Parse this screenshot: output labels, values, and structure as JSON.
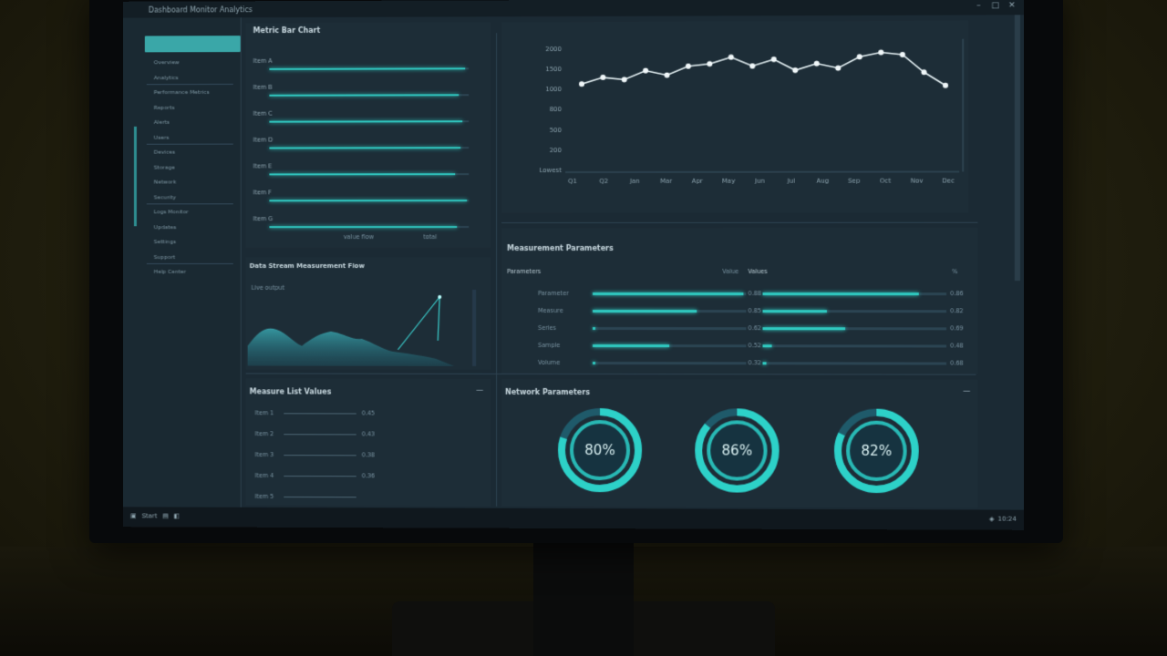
{
  "window": {
    "title": "Dashboard Monitor Analytics"
  },
  "sidebar": {
    "items": [
      {
        "label": "Overview"
      },
      {
        "label": "Analytics"
      },
      {
        "label": "Performance Metrics"
      },
      {
        "label": "Reports"
      },
      {
        "label": "Alerts"
      },
      {
        "label": "Users"
      },
      {
        "label": "Devices"
      },
      {
        "label": "Storage"
      },
      {
        "label": "Network"
      },
      {
        "label": "Security"
      },
      {
        "label": "Logs Monitor"
      },
      {
        "label": "Updates"
      },
      {
        "label": "Settings"
      },
      {
        "label": "Support"
      },
      {
        "label": "Help Center"
      }
    ]
  },
  "top_left_panel": {
    "title": "Metric Bar Chart",
    "rows": [
      {
        "label": "Item A",
        "value": 0.98
      },
      {
        "label": "Item B",
        "value": 0.95
      },
      {
        "label": "Item C",
        "value": 0.97
      },
      {
        "label": "Item D",
        "value": 0.96
      },
      {
        "label": "Item E",
        "value": 0.93
      },
      {
        "label": "Item F",
        "value": 0.99
      },
      {
        "label": "Item G",
        "value": 0.94
      }
    ],
    "footer_a": "value flow",
    "footer_b": "total"
  },
  "area_panel": {
    "title": "Data Stream Measurement Flow",
    "subtitle": "Live output"
  },
  "line_panel": {
    "y_labels": [
      "2000",
      "1500",
      "1000",
      "800",
      "500",
      "200",
      "Lowest"
    ],
    "x_labels": [
      "Q1",
      "Q2",
      "Jan",
      "Mar",
      "Apr",
      "May",
      "Jun",
      "Jul",
      "Aug",
      "Sep",
      "Oct",
      "Nov",
      "Dec"
    ],
    "chart_data": {
      "type": "line",
      "series": [
        {
          "values": [
            40,
            43,
            42,
            46,
            44,
            48,
            49,
            52,
            48,
            51,
            46,
            49,
            47,
            52,
            54,
            53,
            45,
            39
          ]
        }
      ],
      "ylim": [
        0,
        60
      ]
    }
  },
  "measurement_panel": {
    "title": "Measurement Parameters",
    "left_header": "Parameters",
    "left_header_value": "Value",
    "right_header": "Values",
    "right_header_value": "%",
    "left_rows": [
      {
        "label": "Parameter",
        "value": "0.88",
        "fill": 0.98
      },
      {
        "label": "Measure",
        "value": "0.85",
        "fill": 0.68
      },
      {
        "label": "Series",
        "value": "0.62",
        "fill": 0.02
      },
      {
        "label": "Sample",
        "value": "0.52",
        "fill": 0.5
      },
      {
        "label": "Volume",
        "value": "0.32",
        "fill": 0.02
      }
    ],
    "right_rows": [
      {
        "value": "0.86",
        "fill": 0.85
      },
      {
        "value": "0.82",
        "fill": 0.35
      },
      {
        "value": "0.69",
        "fill": 0.45
      },
      {
        "value": "0.48",
        "fill": 0.05
      },
      {
        "value": "0.68",
        "fill": 0.02
      }
    ]
  },
  "bottom_left_panel": {
    "title": "Measure List Values",
    "rows": [
      {
        "label": "Item 1",
        "value": "0.45"
      },
      {
        "label": "Item 2",
        "value": "0.43"
      },
      {
        "label": "Item 3",
        "value": "0.38"
      },
      {
        "label": "Item 4",
        "value": "0.36"
      },
      {
        "label": "Item 5",
        "value": ""
      }
    ]
  },
  "gauges_panel": {
    "title": "Network Parameters",
    "gauges": [
      {
        "label": "80%",
        "value": 0.8
      },
      {
        "label": "86%",
        "value": 0.86
      },
      {
        "label": "82%",
        "value": 0.82
      }
    ]
  },
  "taskbar": {
    "left": "Start",
    "clock": "10:24"
  }
}
